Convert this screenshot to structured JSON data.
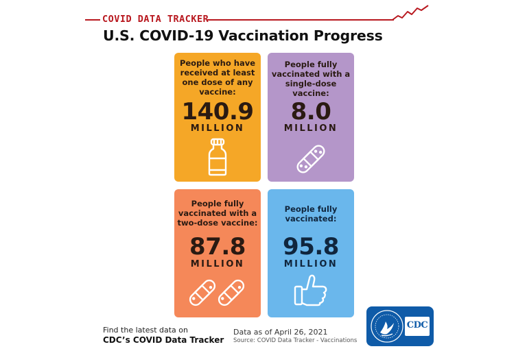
{
  "header": {
    "label": "COVID DATA TRACKER",
    "title": "U.S. COVID-19 Vaccination Progress"
  },
  "cards": [
    {
      "label": "People who have received at least one dose of any vaccine:",
      "value": "140.9",
      "unit": "MILLION",
      "icon": "vaccine-vial-icon",
      "color": "#f5a727"
    },
    {
      "label": "People fully vaccinated with a single-dose vaccine:",
      "value": "8.0",
      "unit": "MILLION",
      "icon": "bandage-icon",
      "color": "#b496c9"
    },
    {
      "label": "People fully vaccinated with a two-dose vaccine:",
      "value": "87.8",
      "unit": "MILLION",
      "icon": "two-bandages-icon",
      "color": "#f58859"
    },
    {
      "label": "People fully vaccinated:",
      "value": "95.8",
      "unit": "MILLION",
      "icon": "thumbs-up-icon",
      "color": "#6ab7ec"
    }
  ],
  "footer": {
    "find_text": "Find the latest data on",
    "tracker_link": "CDC’s COVID Data Tracker",
    "date_text": "Data as of April 26, 2021",
    "source_text": "Source: COVID Data Tracker - Vaccinations"
  },
  "logo": {
    "text": "CDC",
    "icon": "cdc-hhs-logo"
  },
  "colors": {
    "accent": "#b8171e",
    "logo_bg": "#0f5ba8"
  }
}
